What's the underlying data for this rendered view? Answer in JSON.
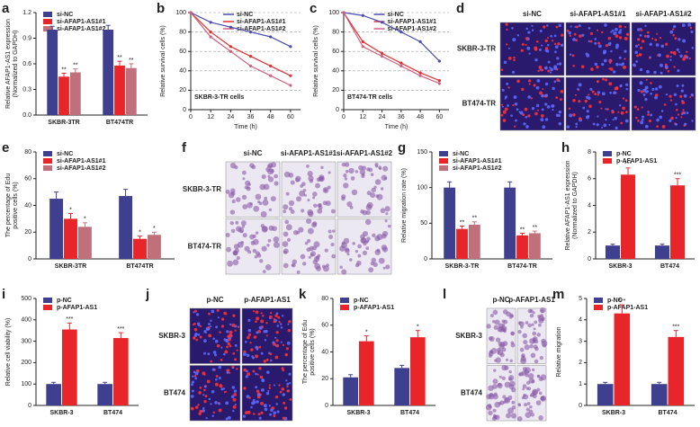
{
  "chart_data": [
    {
      "panel": "a",
      "type": "bar",
      "ylabel": [
        "Relative AFAP1-AS1 expression",
        "(Normalized to GAPDH)"
      ],
      "categories": [
        "SKBR-3TR",
        "BT474TR"
      ],
      "series": [
        {
          "name": "si-NC",
          "color": "#3f3f8f",
          "values": [
            1.0,
            1.0
          ],
          "errors": [
            0.04,
            0.05
          ]
        },
        {
          "name": "si-AFAP1-AS1#1",
          "color": "#e8262a",
          "values": [
            0.45,
            0.58
          ],
          "errors": [
            0.04,
            0.05
          ],
          "significance": [
            "**",
            "**"
          ]
        },
        {
          "name": "si-AFAP1-AS1#2",
          "color": "#c0707a",
          "values": [
            0.5,
            0.55
          ],
          "errors": [
            0.04,
            0.05
          ],
          "significance": [
            "**",
            "**"
          ]
        }
      ],
      "ylim": [
        0,
        1.2
      ],
      "yticks": [
        {
          "value": 0,
          "label": "0.0"
        },
        0.3,
        0.6,
        0.9,
        1.2
      ],
      "legend": "upper right"
    },
    {
      "panel": "b",
      "type": "line",
      "xlabel": "Time (h)",
      "ylabel": "Relative survival cells (%)",
      "annotation": "SKBR-3-TR cells",
      "x": [
        0,
        12,
        24,
        36,
        48,
        60
      ],
      "series": [
        {
          "name": "si-NC",
          "color": "#4a4ab0",
          "values": [
            100,
            90,
            85,
            80,
            75,
            65
          ]
        },
        {
          "name": "si-AFAP1-AS1#1",
          "color": "#e03030",
          "values": [
            100,
            80,
            65,
            55,
            45,
            35
          ]
        },
        {
          "name": "si-AFAP1-AS1#2",
          "color": "#d06080",
          "values": [
            100,
            75,
            60,
            45,
            35,
            25
          ]
        }
      ],
      "xlim": [
        0,
        66
      ],
      "xticks": [
        0,
        12,
        24,
        36,
        48,
        60
      ],
      "ylim": [
        0,
        100
      ],
      "yticks": [
        0,
        20,
        40,
        60,
        80,
        100
      ],
      "grid": true,
      "legend": "upper center"
    },
    {
      "panel": "c",
      "type": "line",
      "xlabel": "Time (h)",
      "ylabel": "Relative survival cells (%)",
      "annotation": "BT474-TR cells",
      "x": [
        0,
        12,
        24,
        36,
        48,
        60
      ],
      "series": [
        {
          "name": "si-NC",
          "color": "#4a4ab0",
          "values": [
            100,
            97,
            90,
            80,
            70,
            50
          ]
        },
        {
          "name": "si-AFAP1-AS1#1",
          "color": "#e03030",
          "values": [
            100,
            70,
            58,
            48,
            38,
            30
          ]
        },
        {
          "name": "si-AFAP1-AS1#2",
          "color": "#d06080",
          "values": [
            100,
            65,
            55,
            45,
            35,
            27
          ]
        }
      ],
      "xlim": [
        0,
        66
      ],
      "xticks": [
        0,
        12,
        24,
        36,
        48,
        60
      ],
      "ylim": [
        0,
        100
      ],
      "yticks": [
        0,
        20,
        40,
        60,
        80,
        100
      ],
      "grid": true,
      "legend": "upper center"
    },
    {
      "panel": "e",
      "type": "bar",
      "ylabel": [
        "The percentage of Edu",
        "positive cells (%)"
      ],
      "categories": [
        "SKBR-3TR",
        "BT474TR"
      ],
      "series": [
        {
          "name": "si-NC",
          "color": "#3f3f8f",
          "values": [
            45,
            47
          ],
          "errors": [
            5,
            5
          ]
        },
        {
          "name": "si-AFAP1-AS1#1",
          "color": "#e8262a",
          "values": [
            30,
            15
          ],
          "errors": [
            4,
            2
          ],
          "significance": [
            "*",
            "*"
          ]
        },
        {
          "name": "si-AFAP1-AS1#2",
          "color": "#c0707a",
          "values": [
            24,
            18
          ],
          "errors": [
            3,
            2
          ],
          "significance": [
            "*",
            "*"
          ]
        }
      ],
      "ylim": [
        0,
        80
      ],
      "yticks": [
        0,
        20,
        40,
        60,
        80
      ],
      "legend": "upper right"
    },
    {
      "panel": "g",
      "type": "bar",
      "ylabel": "Relative migration rate (%)",
      "categories": [
        "SKBR-3-TR",
        "BT474-TR"
      ],
      "series": [
        {
          "name": "si-NC",
          "color": "#3f3f8f",
          "values": [
            100,
            100
          ],
          "errors": [
            8,
            8
          ]
        },
        {
          "name": "si-AFAP1-AS1#1",
          "color": "#e8262a",
          "values": [
            42,
            33
          ],
          "errors": [
            4,
            3
          ],
          "significance": [
            "**",
            "**"
          ]
        },
        {
          "name": "si-AFAP1-AS1#2",
          "color": "#c0707a",
          "values": [
            48,
            36
          ],
          "errors": [
            4,
            3
          ],
          "significance": [
            "**",
            "**"
          ]
        }
      ],
      "ylim": [
        0,
        150
      ],
      "yticks": [
        0,
        50,
        100,
        150
      ],
      "legend": "upper right"
    },
    {
      "panel": "h",
      "type": "bar",
      "ylabel": [
        "Relative AFAP1-AS1 expression",
        "(Normalized to GAPDH)"
      ],
      "categories": [
        "SKBR-3",
        "BT474"
      ],
      "series": [
        {
          "name": "p-NC",
          "color": "#3f3f8f",
          "values": [
            1,
            1
          ],
          "errors": [
            0.1,
            0.1
          ]
        },
        {
          "name": "p-AFAP1-AS1",
          "color": "#e8262a",
          "values": [
            6.3,
            5.5
          ],
          "errors": [
            0.5,
            0.5
          ],
          "significance": [
            "***",
            "***"
          ]
        }
      ],
      "ylim": [
        0,
        8
      ],
      "yticks": [
        0,
        2,
        4,
        6,
        8
      ],
      "legend": "upper right"
    },
    {
      "panel": "i",
      "type": "bar",
      "ylabel": "Relative cell viability (%)",
      "categories": [
        "SKBR-3",
        "BT474"
      ],
      "series": [
        {
          "name": "p-NC",
          "color": "#3f3f8f",
          "values": [
            100,
            100
          ],
          "errors": [
            8,
            8
          ]
        },
        {
          "name": "p-AFAP1-AS1",
          "color": "#e8262a",
          "values": [
            355,
            315
          ],
          "errors": [
            30,
            25
          ],
          "significance": [
            "***",
            "***"
          ]
        }
      ],
      "ylim": [
        0,
        500
      ],
      "yticks": [
        0,
        100,
        200,
        300,
        400,
        500
      ],
      "legend": "upper right"
    },
    {
      "panel": "k",
      "type": "bar",
      "ylabel": [
        "The percentage of Edu",
        "positive cells (%)"
      ],
      "categories": [
        "SKBR-3",
        "BT474"
      ],
      "series": [
        {
          "name": "p-NC",
          "color": "#3f3f8f",
          "values": [
            21,
            28
          ],
          "errors": [
            2,
            2
          ]
        },
        {
          "name": "p-AFAP1-AS1",
          "color": "#e8262a",
          "values": [
            48,
            51
          ],
          "errors": [
            4,
            5
          ],
          "significance": [
            "*",
            "*"
          ]
        }
      ],
      "ylim": [
        0,
        80
      ],
      "yticks": [
        0,
        20,
        40,
        60,
        80
      ],
      "legend": "upper right"
    },
    {
      "panel": "m",
      "type": "bar",
      "ylabel": "Relative migration",
      "categories": [
        "SKBR-3",
        "BT474"
      ],
      "series": [
        {
          "name": "p-NC",
          "color": "#3f3f8f",
          "values": [
            1,
            1
          ],
          "errors": [
            0.08,
            0.08
          ]
        },
        {
          "name": "p-AFAP1-AS1",
          "color": "#e8262a",
          "values": [
            4.3,
            3.2
          ],
          "errors": [
            0.4,
            0.3
          ],
          "significance": [
            "***",
            "***"
          ]
        }
      ],
      "ylim": [
        0,
        5
      ],
      "yticks": [
        0,
        1,
        2,
        3,
        4,
        5
      ],
      "legend": "upper right"
    }
  ],
  "image_panels": [
    {
      "panel": "d",
      "style": "fluorescence",
      "columns": [
        "si-NC",
        "si-AFAP1-AS1#1",
        "si-AFAP1-AS1#2"
      ],
      "rows": [
        "SKBR-3-TR",
        "BT474-TR"
      ]
    },
    {
      "panel": "f",
      "style": "stain",
      "columns": [
        "si-NC",
        "si-AFAP1-AS1#1",
        "si-AFAP1-AS1#2"
      ],
      "rows": [
        "SKBR-3-TR",
        "BT474-TR"
      ]
    },
    {
      "panel": "j",
      "style": "fluorescence",
      "columns": [
        "p-NC",
        "p-AFAP1-AS1"
      ],
      "rows": [
        "SKBR-3",
        "BT474"
      ]
    },
    {
      "panel": "l",
      "style": "stain",
      "columns": [
        "p-NC",
        "p-AFAP1-AS1"
      ],
      "rows": [
        "SKBR-3",
        "BT474"
      ]
    }
  ]
}
